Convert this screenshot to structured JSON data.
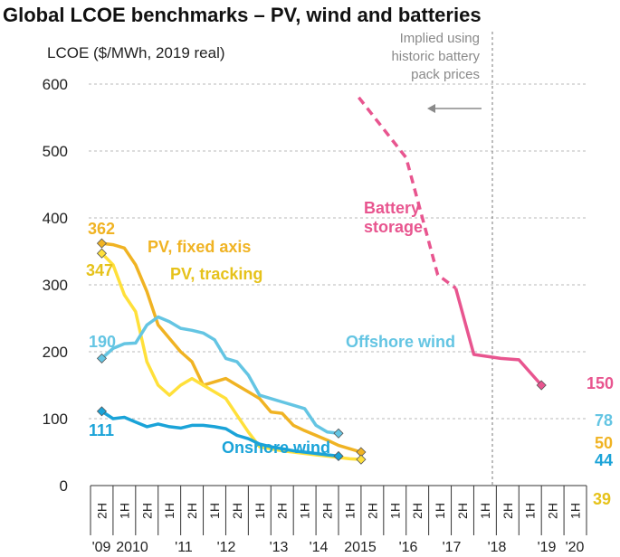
{
  "chart_data": {
    "type": "line",
    "title": "Global LCOE benchmarks – PV, wind and batteries",
    "ylabel": "LCOE ($/MWh, 2019 real)",
    "ylim": [
      0,
      600
    ],
    "yticks": [
      "0",
      "100",
      "200",
      "300",
      "400",
      "500",
      "600"
    ],
    "grid": true,
    "x_halves": [
      "2H",
      "1H",
      "2H",
      "1H",
      "2H",
      "1H",
      "2H",
      "1H",
      "2H",
      "1H",
      "2H",
      "1H",
      "2H",
      "1H",
      "2H",
      "1H",
      "2H",
      "1H",
      "2H",
      "1H",
      "2H",
      "1H"
    ],
    "x_years": [
      "'09",
      "2010",
      "'11",
      "'12",
      "'13",
      "'14",
      "2015",
      "'16",
      "'17",
      "'18",
      "'19",
      "'20"
    ],
    "annotation": [
      "Implied using",
      "historic battery",
      "pack prices"
    ],
    "series": [
      {
        "name": "Battery storage",
        "label_lines": [
          "Battery",
          "storage"
        ],
        "color": "#e8558f",
        "values": [
          null,
          null,
          null,
          null,
          null,
          null,
          null,
          null,
          null,
          null,
          null,
          null,
          null,
          null,
          null,
          null,
          null,
          null,
          null,
          null,
          null,
          null,
          null,
          null,
          null,
          null,
          null,
          null,
          null,
          null,
          null,
          null,
          null,
          null,
          null,
          null,
          null,
          null,
          null,
          null,
          null,
          null,
          null,
          null,
          null,
          null,
          null,
          null,
          null,
          null,
          null,
          null,
          null,
          null
        ],
        "points": [
          [
            2015.45,
            580
          ],
          [
            2016.5,
            490
          ],
          [
            2017.2,
            315
          ],
          [
            2017.6,
            295
          ],
          [
            2018.0,
            196
          ],
          [
            2018.6,
            190
          ],
          [
            2019.0,
            188
          ],
          [
            2019.5,
            150
          ]
        ],
        "dashed_until_x": 2017.6,
        "end_value": "150"
      },
      {
        "name": "PV, fixed axis",
        "color": "#f0b323",
        "points": [
          [
            2009.75,
            362
          ],
          [
            2010.0,
            360
          ],
          [
            2010.25,
            355
          ],
          [
            2010.5,
            330
          ],
          [
            2010.75,
            290
          ],
          [
            2011.0,
            240
          ],
          [
            2011.25,
            220
          ],
          [
            2011.5,
            200
          ],
          [
            2011.75,
            185
          ],
          [
            2012.0,
            150
          ],
          [
            2012.25,
            155
          ],
          [
            2012.5,
            160
          ],
          [
            2012.75,
            150
          ],
          [
            2013.0,
            140
          ],
          [
            2013.25,
            130
          ],
          [
            2013.5,
            110
          ],
          [
            2013.75,
            108
          ],
          [
            2014.0,
            90
          ],
          [
            2014.25,
            82
          ],
          [
            2014.5,
            75
          ],
          [
            2014.75,
            68
          ],
          [
            2015.0,
            60
          ],
          [
            2015.25,
            55
          ],
          [
            2015.5,
            50
          ]
        ],
        "start_value": "362",
        "end_value": "50"
      },
      {
        "name": "PV, tracking",
        "color": "#ffe03a",
        "points": [
          [
            2009.75,
            347
          ],
          [
            2010.0,
            330
          ],
          [
            2010.25,
            285
          ],
          [
            2010.5,
            260
          ],
          [
            2010.75,
            185
          ],
          [
            2011.0,
            150
          ],
          [
            2011.25,
            135
          ],
          [
            2011.5,
            150
          ],
          [
            2011.75,
            160
          ],
          [
            2012.0,
            150
          ],
          [
            2012.25,
            140
          ],
          [
            2012.5,
            130
          ],
          [
            2012.75,
            105
          ],
          [
            2013.0,
            80
          ],
          [
            2013.25,
            58
          ],
          [
            2013.5,
            55
          ],
          [
            2013.75,
            52
          ],
          [
            2014.0,
            50
          ],
          [
            2014.25,
            48
          ],
          [
            2014.5,
            46
          ],
          [
            2014.75,
            44
          ],
          [
            2015.0,
            42
          ],
          [
            2015.25,
            40
          ],
          [
            2015.5,
            39
          ]
        ],
        "start_value": "347",
        "end_value": "39"
      },
      {
        "name": "Offshore wind",
        "color": "#64c5e3",
        "points": [
          [
            2009.75,
            190
          ],
          [
            2010.0,
            205
          ],
          [
            2010.25,
            212
          ],
          [
            2010.5,
            213
          ],
          [
            2010.75,
            240
          ],
          [
            2011.0,
            252
          ],
          [
            2011.25,
            245
          ],
          [
            2011.5,
            235
          ],
          [
            2011.75,
            232
          ],
          [
            2012.0,
            228
          ],
          [
            2012.25,
            218
          ],
          [
            2012.5,
            190
          ],
          [
            2012.75,
            185
          ],
          [
            2013.0,
            165
          ],
          [
            2013.25,
            135
          ],
          [
            2013.5,
            130
          ],
          [
            2013.75,
            125
          ],
          [
            2014.0,
            120
          ],
          [
            2014.25,
            115
          ],
          [
            2014.5,
            90
          ],
          [
            2014.75,
            80
          ],
          [
            2015.0,
            78
          ]
        ],
        "start_value": "190",
        "end_value": "78"
      },
      {
        "name": "Onshore wind",
        "color": "#1aa3d8",
        "points": [
          [
            2009.75,
            111
          ],
          [
            2010.0,
            100
          ],
          [
            2010.25,
            102
          ],
          [
            2010.5,
            95
          ],
          [
            2010.75,
            88
          ],
          [
            2011.0,
            92
          ],
          [
            2011.25,
            88
          ],
          [
            2011.5,
            86
          ],
          [
            2011.75,
            90
          ],
          [
            2012.0,
            90
          ],
          [
            2012.25,
            88
          ],
          [
            2012.5,
            85
          ],
          [
            2012.75,
            75
          ],
          [
            2013.0,
            70
          ],
          [
            2013.25,
            62
          ],
          [
            2013.5,
            58
          ],
          [
            2013.75,
            55
          ],
          [
            2014.0,
            52
          ],
          [
            2014.25,
            50
          ],
          [
            2014.5,
            48
          ],
          [
            2014.75,
            46
          ],
          [
            2015.0,
            44
          ]
        ],
        "start_value": "111",
        "end_value": "44"
      }
    ]
  }
}
